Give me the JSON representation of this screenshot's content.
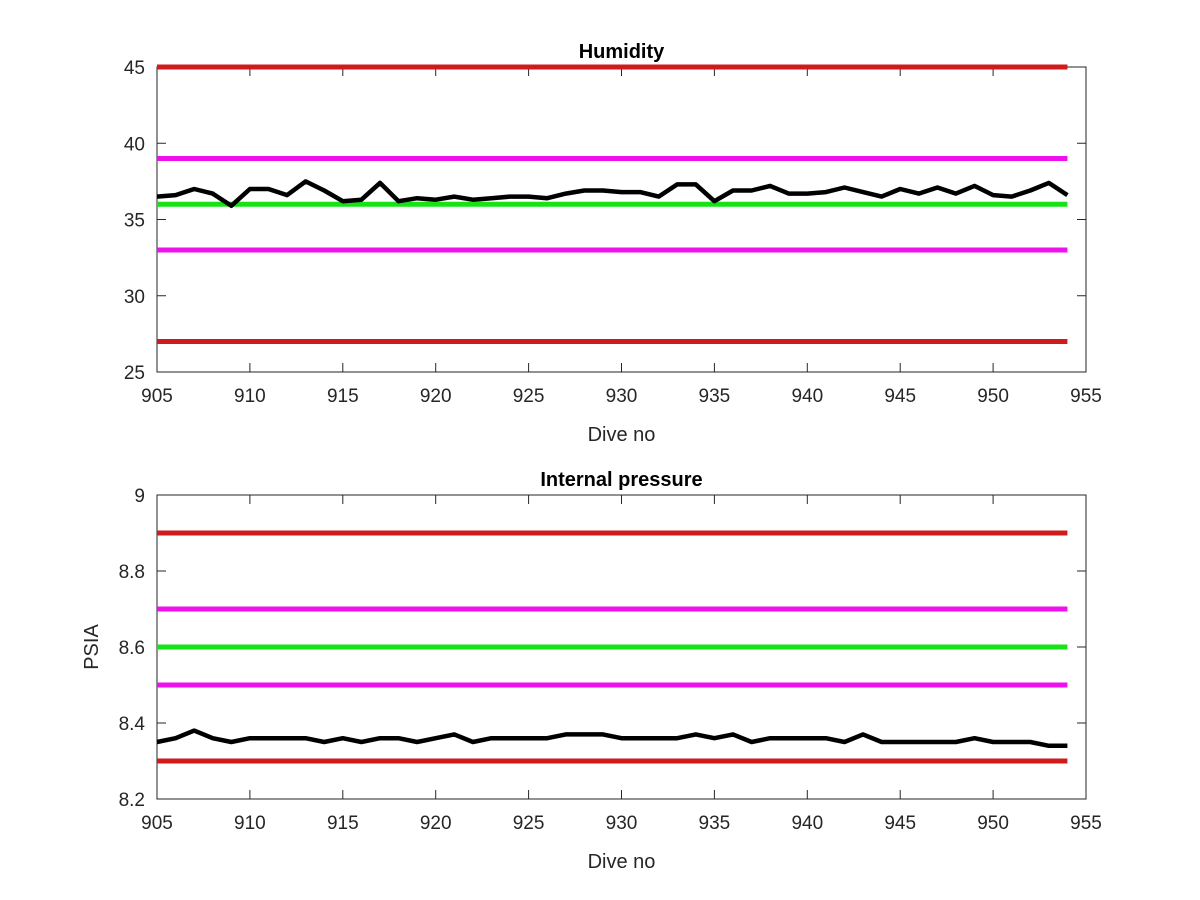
{
  "colors": {
    "limit_outer": "#d11b1b",
    "limit_inner": "#ee11ee",
    "target": "#16e316",
    "measured": "#000000",
    "axes": "#262626"
  },
  "chart_data": [
    {
      "type": "line",
      "title": "Humidity",
      "xlabel": "Dive no",
      "ylabel": "",
      "xlim": [
        905,
        955
      ],
      "ylim": [
        25,
        45
      ],
      "xticks": [
        905,
        910,
        915,
        920,
        925,
        930,
        935,
        940,
        945,
        950,
        955
      ],
      "yticks": [
        25,
        30,
        35,
        40,
        45
      ],
      "grid": false,
      "reference_lines": [
        {
          "y": 45,
          "x": [
            905,
            954
          ],
          "color": "#d11b1b"
        },
        {
          "y": 39,
          "x": [
            905,
            954
          ],
          "color": "#ee11ee"
        },
        {
          "y": 36,
          "x": [
            905,
            954
          ],
          "color": "#16e316"
        },
        {
          "y": 33,
          "x": [
            905,
            954
          ],
          "color": "#ee11ee"
        },
        {
          "y": 27,
          "x": [
            905,
            954
          ],
          "color": "#d11b1b"
        }
      ],
      "series": [
        {
          "color": "#000000",
          "x": [
            905,
            906,
            907,
            908,
            909,
            910,
            911,
            912,
            913,
            914,
            915,
            916,
            917,
            918,
            919,
            920,
            921,
            922,
            923,
            924,
            925,
            926,
            927,
            928,
            929,
            930,
            931,
            932,
            933,
            934,
            935,
            936,
            937,
            938,
            939,
            940,
            941,
            942,
            943,
            944,
            945,
            946,
            947,
            948,
            949,
            950,
            951,
            952,
            953,
            954
          ],
          "values": [
            36.5,
            36.6,
            37.0,
            36.7,
            35.9,
            37.0,
            37.0,
            36.6,
            37.5,
            36.9,
            36.2,
            36.3,
            37.4,
            36.2,
            36.4,
            36.3,
            36.5,
            36.3,
            36.4,
            36.5,
            36.5,
            36.4,
            36.7,
            36.9,
            36.9,
            36.8,
            36.8,
            36.5,
            37.3,
            37.3,
            36.2,
            36.9,
            36.9,
            37.2,
            36.7,
            36.7,
            36.8,
            37.1,
            36.8,
            36.5,
            37.0,
            36.7,
            37.1,
            36.7,
            37.2,
            36.6,
            36.5,
            36.9,
            37.4,
            36.6
          ]
        }
      ]
    },
    {
      "type": "line",
      "title": "Internal pressure",
      "xlabel": "Dive no",
      "ylabel": "PSIA",
      "xlim": [
        905,
        955
      ],
      "ylim": [
        8.2,
        9.0
      ],
      "xticks": [
        905,
        910,
        915,
        920,
        925,
        930,
        935,
        940,
        945,
        950,
        955
      ],
      "yticks": [
        8.2,
        8.4,
        8.6,
        8.8,
        9.0
      ],
      "ytick_labels": [
        "8.2",
        "8.4",
        "8.6",
        "8.8",
        "9"
      ],
      "grid": false,
      "reference_lines": [
        {
          "y": 8.9,
          "x": [
            905,
            954
          ],
          "color": "#d11b1b"
        },
        {
          "y": 8.7,
          "x": [
            905,
            954
          ],
          "color": "#ee11ee"
        },
        {
          "y": 8.6,
          "x": [
            905,
            954
          ],
          "color": "#16e316"
        },
        {
          "y": 8.5,
          "x": [
            905,
            954
          ],
          "color": "#ee11ee"
        },
        {
          "y": 8.3,
          "x": [
            905,
            954
          ],
          "color": "#d11b1b"
        }
      ],
      "series": [
        {
          "color": "#000000",
          "x": [
            905,
            906,
            907,
            908,
            909,
            910,
            911,
            912,
            913,
            914,
            915,
            916,
            917,
            918,
            919,
            920,
            921,
            922,
            923,
            924,
            925,
            926,
            927,
            928,
            929,
            930,
            931,
            932,
            933,
            934,
            935,
            936,
            937,
            938,
            939,
            940,
            941,
            942,
            943,
            944,
            945,
            946,
            947,
            948,
            949,
            950,
            951,
            952,
            953,
            954
          ],
          "values": [
            8.35,
            8.36,
            8.38,
            8.36,
            8.35,
            8.36,
            8.36,
            8.36,
            8.36,
            8.35,
            8.36,
            8.35,
            8.36,
            8.36,
            8.35,
            8.36,
            8.37,
            8.35,
            8.36,
            8.36,
            8.36,
            8.36,
            8.37,
            8.37,
            8.37,
            8.36,
            8.36,
            8.36,
            8.36,
            8.37,
            8.36,
            8.37,
            8.35,
            8.36,
            8.36,
            8.36,
            8.36,
            8.35,
            8.37,
            8.35,
            8.35,
            8.35,
            8.35,
            8.35,
            8.36,
            8.35,
            8.35,
            8.35,
            8.34,
            8.34
          ]
        }
      ]
    }
  ]
}
